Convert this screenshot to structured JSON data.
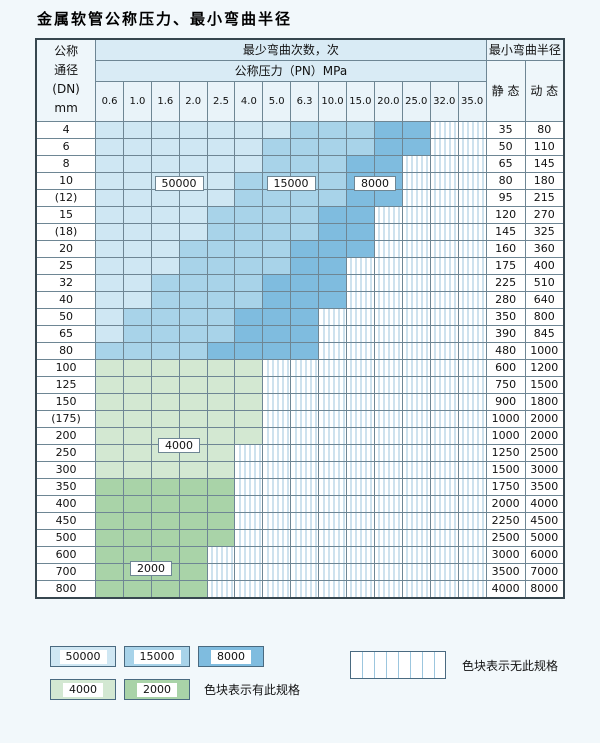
{
  "title": "金属软管公称压力、最小弯曲半径",
  "table": {
    "header": {
      "dn_lines": [
        "公称",
        "通径",
        "(DN)",
        "mm"
      ],
      "bend_times": "最少弯曲次数，次",
      "pressure": "公称压力（PN）MPa",
      "pressures": [
        "0.6",
        "1.0",
        "1.6",
        "2.0",
        "2.5",
        "4.0",
        "5.0",
        "6.3",
        "10.0",
        "15.0",
        "20.0",
        "25.0",
        "32.0",
        "35.0"
      ],
      "radius": "最小弯曲半径",
      "static": "静 态",
      "dynamic": "动 态"
    },
    "rows": [
      {
        "dn": "4",
        "static": "35",
        "dynamic": "80",
        "bands": [
          [
            "b1",
            7
          ],
          [
            "b2",
            3
          ],
          [
            "b3",
            2
          ],
          [
            "st",
            2
          ]
        ]
      },
      {
        "dn": "6",
        "static": "50",
        "dynamic": "110",
        "bands": [
          [
            "b1",
            6
          ],
          [
            "b2",
            4
          ],
          [
            "b3",
            2
          ],
          [
            "st",
            2
          ]
        ]
      },
      {
        "dn": "8",
        "static": "65",
        "dynamic": "145",
        "bands": [
          [
            "b1",
            6
          ],
          [
            "b2",
            3
          ],
          [
            "b3",
            2
          ],
          [
            "st",
            3
          ]
        ]
      },
      {
        "dn": "10",
        "static": "80",
        "dynamic": "180",
        "bands": [
          [
            "b1",
            5
          ],
          [
            "b2",
            4
          ],
          [
            "b3",
            2
          ],
          [
            "st",
            3
          ]
        ]
      },
      {
        "dn": "(12)",
        "static": "95",
        "dynamic": "215",
        "bands": [
          [
            "b1",
            5
          ],
          [
            "b2",
            4
          ],
          [
            "b3",
            2
          ],
          [
            "st",
            3
          ]
        ]
      },
      {
        "dn": "15",
        "static": "120",
        "dynamic": "270",
        "bands": [
          [
            "b1",
            4
          ],
          [
            "b2",
            4
          ],
          [
            "b3",
            2
          ],
          [
            "st",
            4
          ]
        ]
      },
      {
        "dn": "(18)",
        "static": "145",
        "dynamic": "325",
        "bands": [
          [
            "b1",
            4
          ],
          [
            "b2",
            4
          ],
          [
            "b3",
            2
          ],
          [
            "st",
            4
          ]
        ]
      },
      {
        "dn": "20",
        "static": "160",
        "dynamic": "360",
        "bands": [
          [
            "b1",
            3
          ],
          [
            "b2",
            4
          ],
          [
            "b3",
            3
          ],
          [
            "st",
            4
          ]
        ]
      },
      {
        "dn": "25",
        "static": "175",
        "dynamic": "400",
        "bands": [
          [
            "b1",
            3
          ],
          [
            "b2",
            4
          ],
          [
            "b3",
            2
          ],
          [
            "st",
            5
          ]
        ]
      },
      {
        "dn": "32",
        "static": "225",
        "dynamic": "510",
        "bands": [
          [
            "b1",
            2
          ],
          [
            "b2",
            4
          ],
          [
            "b3",
            3
          ],
          [
            "st",
            5
          ]
        ]
      },
      {
        "dn": "40",
        "static": "280",
        "dynamic": "640",
        "bands": [
          [
            "b1",
            2
          ],
          [
            "b2",
            4
          ],
          [
            "b3",
            3
          ],
          [
            "st",
            5
          ]
        ]
      },
      {
        "dn": "50",
        "static": "350",
        "dynamic": "800",
        "bands": [
          [
            "b1",
            1
          ],
          [
            "b2",
            4
          ],
          [
            "b3",
            3
          ],
          [
            "st",
            6
          ]
        ]
      },
      {
        "dn": "65",
        "static": "390",
        "dynamic": "845",
        "bands": [
          [
            "b1",
            1
          ],
          [
            "b2",
            4
          ],
          [
            "b3",
            3
          ],
          [
            "st",
            6
          ]
        ]
      },
      {
        "dn": "80",
        "static": "480",
        "dynamic": "1000",
        "bands": [
          [
            "b2",
            4
          ],
          [
            "b3",
            4
          ],
          [
            "st",
            6
          ]
        ]
      },
      {
        "dn": "100",
        "static": "600",
        "dynamic": "1200",
        "bands": [
          [
            "g1",
            6
          ],
          [
            "st",
            8
          ]
        ]
      },
      {
        "dn": "125",
        "static": "750",
        "dynamic": "1500",
        "bands": [
          [
            "g1",
            6
          ],
          [
            "st",
            8
          ]
        ]
      },
      {
        "dn": "150",
        "static": "900",
        "dynamic": "1800",
        "bands": [
          [
            "g1",
            6
          ],
          [
            "st",
            8
          ]
        ]
      },
      {
        "dn": "(175)",
        "static": "1000",
        "dynamic": "2000",
        "bands": [
          [
            "g1",
            6
          ],
          [
            "st",
            8
          ]
        ]
      },
      {
        "dn": "200",
        "static": "1000",
        "dynamic": "2000",
        "bands": [
          [
            "g1",
            6
          ],
          [
            "st",
            8
          ]
        ]
      },
      {
        "dn": "250",
        "static": "1250",
        "dynamic": "2500",
        "bands": [
          [
            "g1",
            5
          ],
          [
            "st",
            9
          ]
        ]
      },
      {
        "dn": "300",
        "static": "1500",
        "dynamic": "3000",
        "bands": [
          [
            "g1",
            5
          ],
          [
            "st",
            9
          ]
        ]
      },
      {
        "dn": "350",
        "static": "1750",
        "dynamic": "3500",
        "bands": [
          [
            "g2",
            5
          ],
          [
            "st",
            9
          ]
        ]
      },
      {
        "dn": "400",
        "static": "2000",
        "dynamic": "4000",
        "bands": [
          [
            "g2",
            5
          ],
          [
            "st",
            9
          ]
        ]
      },
      {
        "dn": "450",
        "static": "2250",
        "dynamic": "4500",
        "bands": [
          [
            "g2",
            5
          ],
          [
            "st",
            9
          ]
        ]
      },
      {
        "dn": "500",
        "static": "2500",
        "dynamic": "5000",
        "bands": [
          [
            "g2",
            5
          ],
          [
            "st",
            9
          ]
        ]
      },
      {
        "dn": "600",
        "static": "3000",
        "dynamic": "6000",
        "bands": [
          [
            "g2",
            4
          ],
          [
            "st",
            10
          ]
        ]
      },
      {
        "dn": "700",
        "static": "3500",
        "dynamic": "7000",
        "bands": [
          [
            "g2",
            4
          ],
          [
            "st",
            10
          ]
        ]
      },
      {
        "dn": "800",
        "static": "4000",
        "dynamic": "8000",
        "bands": [
          [
            "g2",
            4
          ],
          [
            "st",
            10
          ]
        ]
      }
    ]
  },
  "annotations": [
    {
      "label": "50000",
      "row": 3,
      "col_start": 2,
      "col_end": 3
    },
    {
      "label": "15000",
      "row": 3,
      "col_start": 6,
      "col_end": 7
    },
    {
      "label": "8000",
      "row": 3,
      "col_start": 9,
      "col_end": 10
    },
    {
      "label": "4000",
      "row": 18,
      "col_start": 2,
      "col_end": 3
    },
    {
      "label": "2000",
      "row": 25,
      "col_start": 1,
      "col_end": 2
    }
  ],
  "band_values": {
    "b1": "50000",
    "b2": "15000",
    "b3": "8000",
    "g1": "4000",
    "g2": "2000"
  },
  "colors": {
    "b1": "#cfe7f3",
    "b2": "#a8d3e9",
    "b3": "#7fbcdf",
    "g1": "#d3e8d2",
    "g2": "#a9d3a8",
    "stripe": "#9cc6de"
  },
  "legend": {
    "blue": [
      {
        "label": "50000",
        "color": "b1"
      },
      {
        "label": "15000",
        "color": "b2"
      },
      {
        "label": "8000",
        "color": "b3"
      }
    ],
    "green": [
      {
        "label": "4000",
        "color": "g1"
      },
      {
        "label": "2000",
        "color": "g2"
      }
    ],
    "has_spec_text": "色块表示有此规格",
    "no_spec_text": "色块表示无此规格"
  }
}
